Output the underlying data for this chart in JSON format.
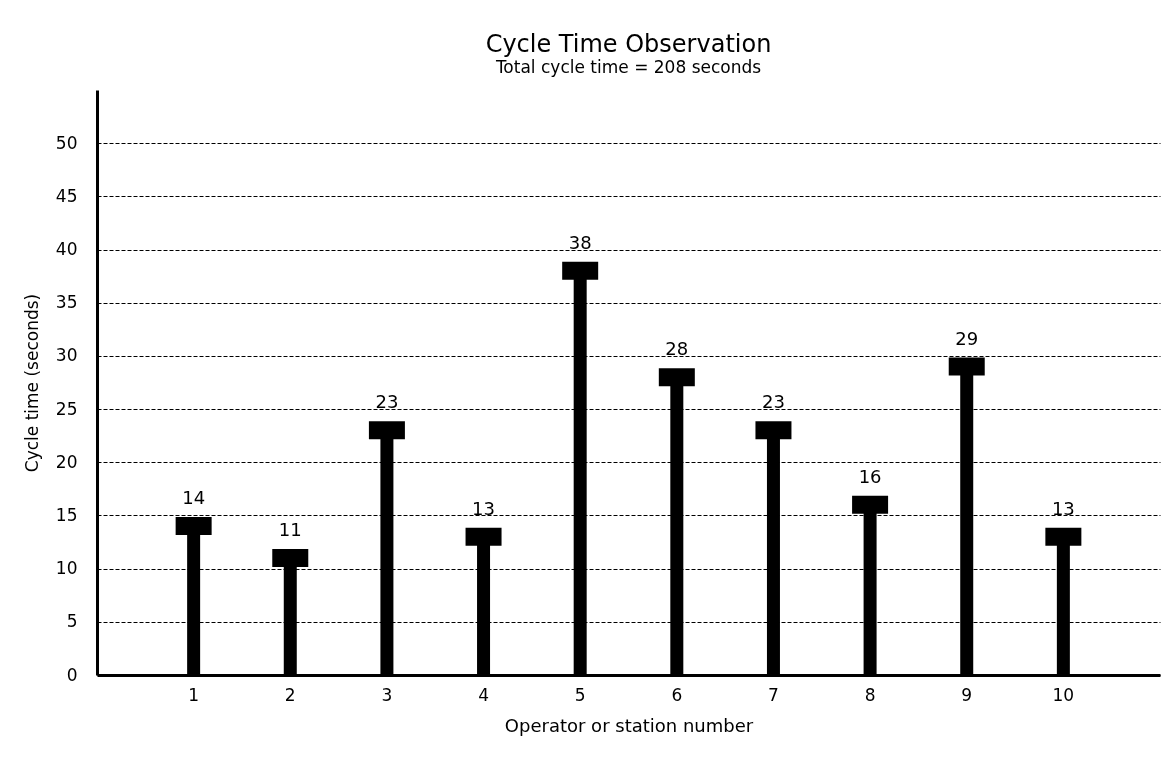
{
  "chart_data": {
    "type": "lollipop",
    "title": "Cycle Time Observation",
    "subtitle": "Total cycle time = 208 seconds",
    "xlabel": "Operator or station number",
    "ylabel": "Cycle time (seconds)",
    "categories": [
      "1",
      "2",
      "3",
      "4",
      "5",
      "6",
      "7",
      "8",
      "9",
      "10"
    ],
    "values": [
      14,
      11,
      23,
      13,
      38,
      28,
      23,
      16,
      29,
      13
    ],
    "color": "#000000",
    "ylim": [
      0,
      55
    ],
    "yticks": [
      0,
      5,
      10,
      15,
      20,
      25,
      30,
      35,
      40,
      45,
      50
    ],
    "grid": "y",
    "marker": "square",
    "data_labels": true
  }
}
